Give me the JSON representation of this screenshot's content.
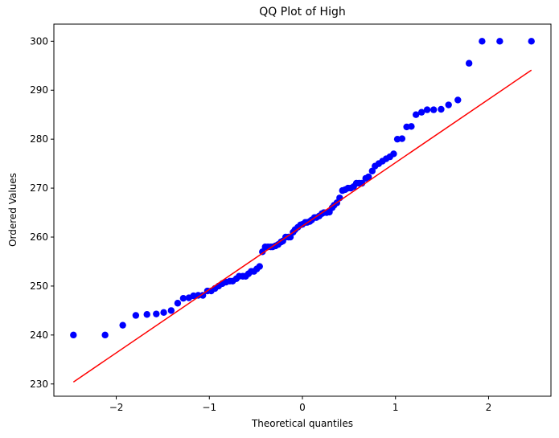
{
  "chart_data": {
    "type": "scatter",
    "title": "QQ Plot of High",
    "xlabel": "Theoretical quantiles",
    "ylabel": "Ordered Values",
    "xlim": [
      -2.67,
      2.67
    ],
    "ylim": [
      227.5,
      303.5
    ],
    "xticks": [
      -2,
      -1,
      0,
      1,
      2
    ],
    "xtick_labels": [
      "−2",
      "−1",
      "0",
      "1",
      "2"
    ],
    "yticks": [
      230,
      240,
      250,
      260,
      270,
      280,
      290,
      300
    ],
    "ytick_labels": [
      "230",
      "240",
      "250",
      "260",
      "270",
      "280",
      "290",
      "300"
    ],
    "grid": false,
    "legend": "none",
    "colors": {
      "points": "#0000ff",
      "fit_line": "#ff0000"
    },
    "fit_line": {
      "x": [
        -2.46,
        2.46
      ],
      "y": [
        230.4,
        294.1
      ]
    },
    "points": {
      "x": [
        -2.46,
        -2.12,
        -1.93,
        -1.79,
        -1.67,
        -1.57,
        -1.49,
        -1.41,
        -1.34,
        -1.28,
        -1.22,
        -1.17,
        -1.12,
        -1.07,
        -1.02,
        -0.98,
        -0.94,
        -0.9,
        -0.86,
        -0.82,
        -0.78,
        -0.75,
        -0.71,
        -0.68,
        -0.64,
        -0.61,
        -0.58,
        -0.55,
        -0.52,
        -0.49,
        -0.46,
        -0.43,
        -0.4,
        -0.37,
        -0.34,
        -0.32,
        -0.29,
        -0.26,
        -0.23,
        -0.21,
        -0.18,
        -0.15,
        -0.13,
        -0.1,
        -0.08,
        -0.05,
        -0.02,
        0.0,
        0.03,
        0.05,
        0.08,
        0.1,
        0.13,
        0.15,
        0.18,
        0.21,
        0.23,
        0.26,
        0.29,
        0.32,
        0.34,
        0.37,
        0.4,
        0.43,
        0.46,
        0.49,
        0.52,
        0.55,
        0.58,
        0.61,
        0.64,
        0.68,
        0.71,
        0.75,
        0.78,
        0.82,
        0.86,
        0.9,
        0.94,
        0.98,
        1.02,
        1.07,
        1.12,
        1.17,
        1.22,
        1.28,
        1.34,
        1.41,
        1.49,
        1.57,
        1.67,
        1.79,
        1.93,
        2.12,
        2.46
      ],
      "y": [
        240,
        240,
        242,
        244,
        244.2,
        244.3,
        244.6,
        245,
        246.5,
        247.5,
        247.6,
        248,
        248.1,
        248.1,
        249,
        249,
        249.5,
        250,
        250.5,
        250.8,
        251,
        251,
        251.5,
        252,
        252,
        252,
        252.5,
        253,
        253,
        253.5,
        254,
        257,
        258,
        258,
        258,
        258,
        258.2,
        258.5,
        259,
        259.2,
        260,
        260,
        260,
        261,
        261.5,
        262,
        262.5,
        262.6,
        263,
        263,
        263.2,
        263.5,
        264,
        264,
        264.3,
        264.8,
        265,
        265,
        265.1,
        266,
        266.5,
        267,
        268,
        269.5,
        269.7,
        270,
        270,
        270.3,
        271,
        271,
        271,
        272,
        272.3,
        273.5,
        274.5,
        275,
        275.5,
        276,
        276.4,
        277,
        280,
        280.1,
        282.5,
        282.6,
        285,
        285.5,
        286,
        286,
        286.1,
        287,
        288,
        295.5,
        300,
        300,
        300
      ]
    }
  }
}
